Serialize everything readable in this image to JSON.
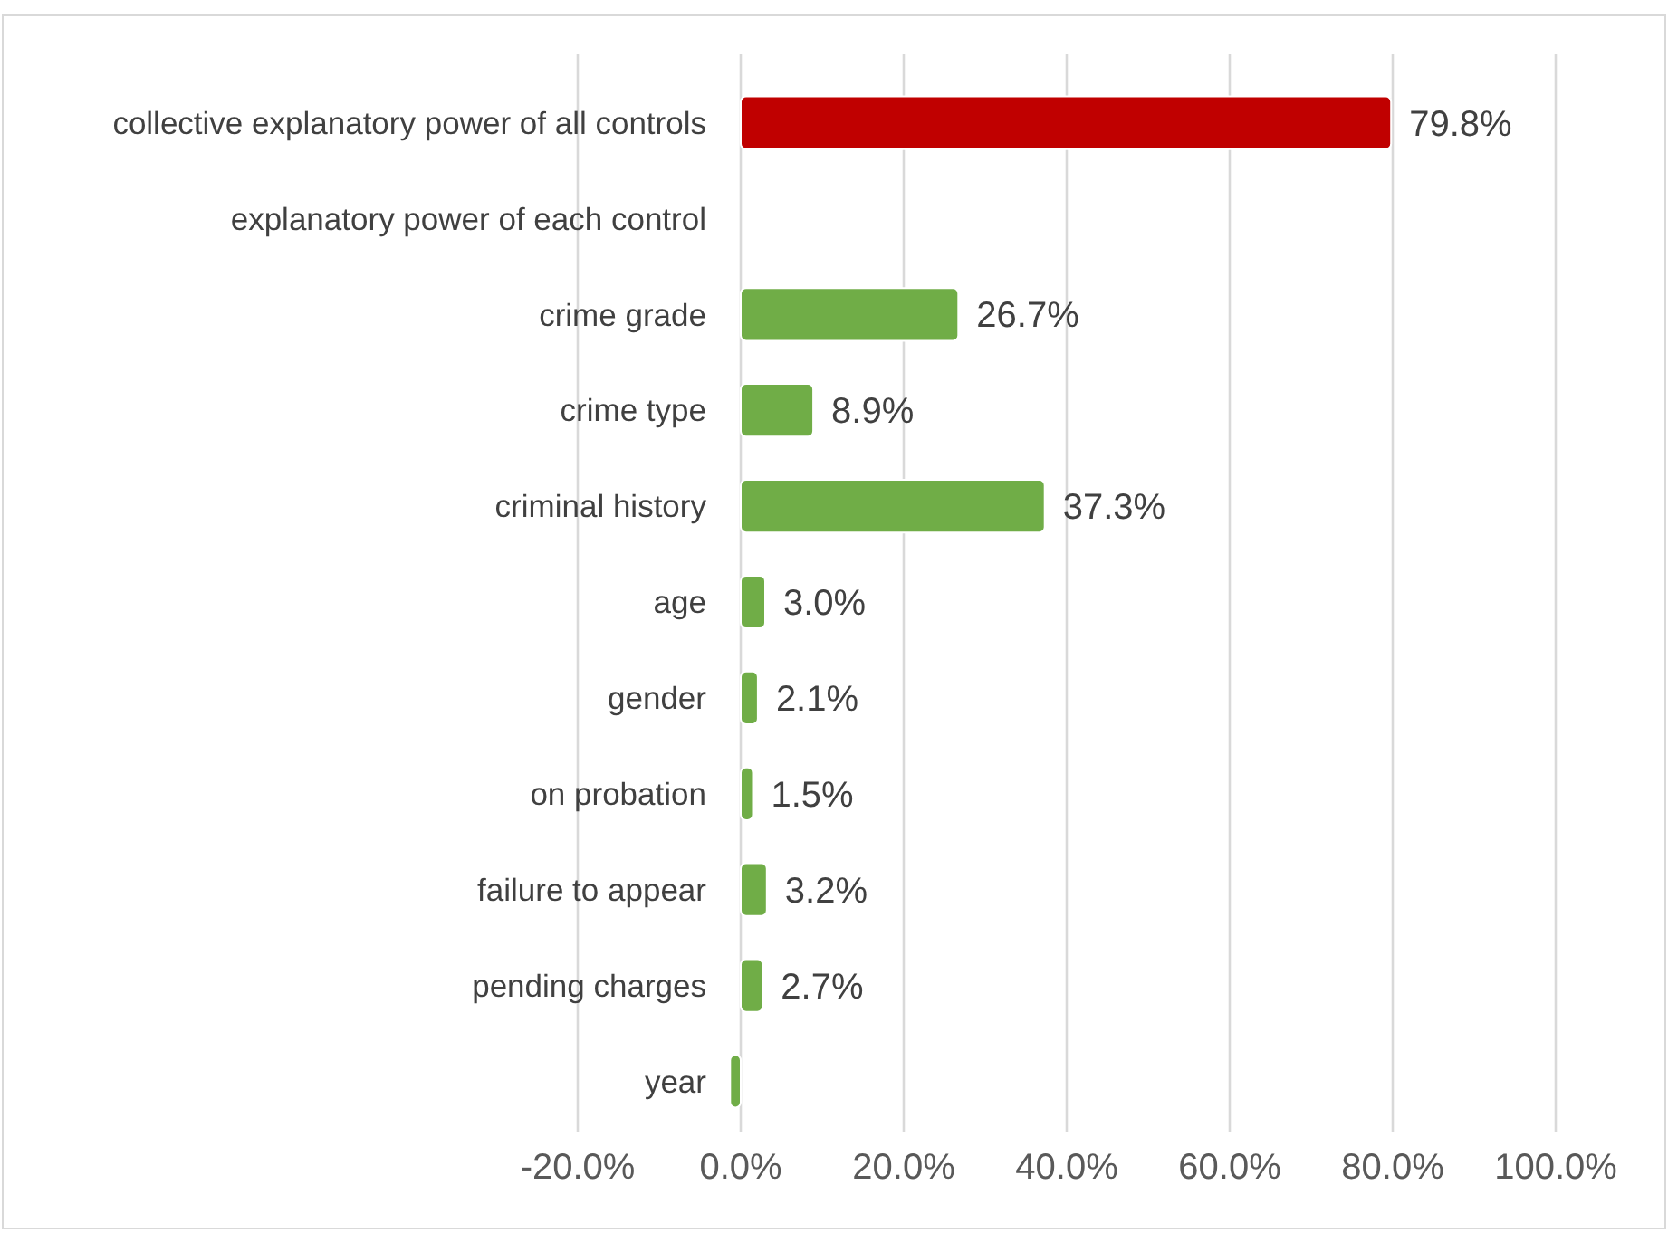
{
  "chart_data": {
    "type": "bar",
    "orientation": "horizontal",
    "categories": [
      "collective explanatory power of all controls",
      "explanatory power of each control",
      "crime grade",
      "crime type",
      "criminal history",
      "age",
      "gender",
      "on probation",
      "failure to appear",
      "pending charges",
      "year"
    ],
    "values": [
      79.8,
      null,
      26.7,
      8.9,
      37.3,
      3.0,
      2.1,
      1.5,
      3.2,
      2.7,
      -1.3
    ],
    "colors": [
      "#c00000",
      null,
      "#70ad47",
      "#70ad47",
      "#70ad47",
      "#70ad47",
      "#70ad47",
      "#70ad47",
      "#70ad47",
      "#70ad47",
      "#70ad47"
    ],
    "value_labels": [
      "79.8%",
      null,
      "26.7%",
      "8.9%",
      "37.3%",
      "3.0%",
      "2.1%",
      "1.5%",
      "3.2%",
      "2.7%",
      null
    ],
    "xlim": [
      -20,
      100
    ],
    "xticks": [
      {
        "value": -20,
        "label": "-20.0%"
      },
      {
        "value": 0,
        "label": "0.0%"
      },
      {
        "value": 20,
        "label": "20.0%"
      },
      {
        "value": 40,
        "label": "40.0%"
      },
      {
        "value": 60,
        "label": "60.0%"
      },
      {
        "value": 80,
        "label": "80.0%"
      },
      {
        "value": 100,
        "label": "100.0%"
      }
    ],
    "grid": "x"
  }
}
